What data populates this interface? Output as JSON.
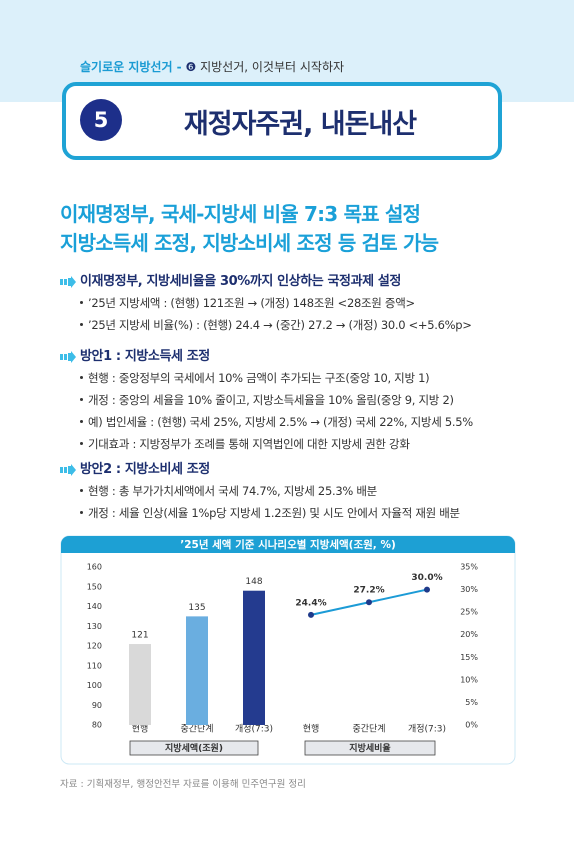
{
  "header": {
    "series": "슬기로운 지방선거 -",
    "badge": "❻",
    "chapter": "지방선거, 이것부터 시작하자"
  },
  "title": {
    "number": "5",
    "text": "재정자주권, 내돈내산"
  },
  "headline": [
    "이재명정부, 국세-지방세 비율 7:3 목표 설정",
    "지방소득세 조정, 지방소비세 조정 등 검토 가능"
  ],
  "sections": [
    {
      "heading": "이재명정부, 지방세비율을 30%까지 인상하는 국정과제 설정",
      "items": [
        "’25년 지방세액 : (현행) 121조원 → (개정) 148조원 <28조원 증액>",
        "’25년 지방세 비율(%) : (현행) 24.4 → (중간) 27.2 → (개정) 30.0 <+5.6%p>"
      ]
    },
    {
      "heading": "방안1 : 지방소득세 조정",
      "items": [
        "현행 : 중앙정부의 국세에서 10% 금액이 추가되는 구조(중앙 10, 지방 1)",
        "개정 : 중앙의 세율을 10% 줄이고, 지방소득세율을 10% 올림(중앙 9, 지방 2)",
        "예) 법인세율 : (현행) 국세 25%, 지방세 2.5% → (개정) 국세 22%, 지방세 5.5%",
        "기대효과 : 지방정부가 조례를 통해 지역법인에 대한 지방세 권한 강화"
      ]
    },
    {
      "heading": "방안2 : 지방소비세 조정",
      "items": [
        "현행 : 총 부가가치세액에서 국세 74.7%, 지방세 25.3% 배분",
        "개정 : 세율 인상(세율 1%p당 지방세 1.2조원) 및 시도 안에서 자율적 재원 배분"
      ]
    }
  ],
  "chart_data": [
    {
      "type": "bar",
      "title": "’25년 세액 기준 시나리오별 지방세액(조원, %)",
      "xlabel": "지방세액(조원)",
      "categories": [
        "현행",
        "중간단계",
        "개정(7:3)"
      ],
      "values": [
        121,
        135,
        148
      ],
      "colors": [
        "#d9d9d9",
        "#6aaee0",
        "#243b8f"
      ],
      "ylim": [
        80,
        160
      ],
      "yticks": [
        80,
        90,
        100,
        110,
        120,
        130,
        140,
        150,
        160
      ]
    },
    {
      "type": "line",
      "xlabel": "지방세비율",
      "categories": [
        "현행",
        "중간단계",
        "개정(7:3)"
      ],
      "values": [
        24.4,
        27.2,
        30.0
      ],
      "value_labels": [
        "24.4%",
        "27.2%",
        "30.0%"
      ],
      "color": "#1c9bd6",
      "marker_color": "#1f3a8a",
      "ylim": [
        0,
        35
      ],
      "yticks": [
        {
          "value": 0,
          "label": "0%"
        },
        {
          "value": 5,
          "label": "5%"
        },
        {
          "value": 10,
          "label": "10%"
        },
        {
          "value": 15,
          "label": "15%"
        },
        {
          "value": 20,
          "label": "20%"
        },
        {
          "value": 25,
          "label": "25%"
        },
        {
          "value": 30,
          "label": "30%"
        },
        {
          "value": 35,
          "label": "35%"
        }
      ]
    }
  ],
  "source": "자료 : 기획재정부, 행정안전부 자료를 이용해 민주연구원 정리"
}
